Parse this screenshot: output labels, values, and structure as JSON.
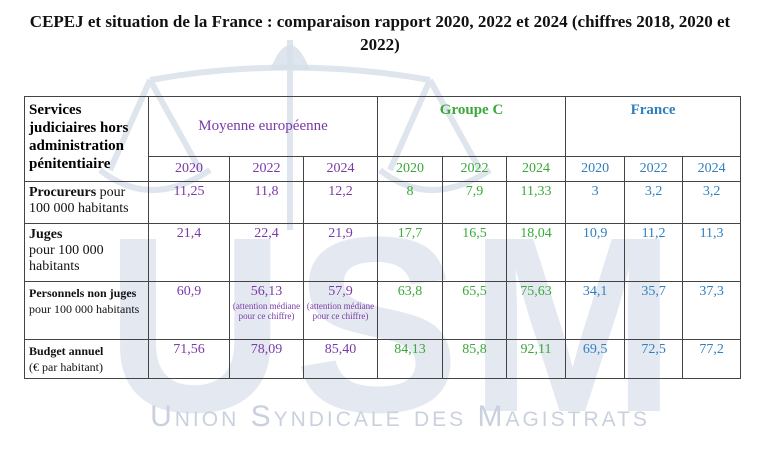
{
  "title": "CEPEJ et situation de la France : comparaison rapport 2020, 2022 et 2024 (chiffres 2018, 2020 et 2022)",
  "watermark": {
    "logo": "USM",
    "caption": "Union Syndicale des Magistrats"
  },
  "colors": {
    "eu": "#7a3aa6",
    "groupe_c": "#3aa83a",
    "france": "#2f7fbf"
  },
  "table": {
    "header": {
      "label": "Services judiciaires hors administration pénitentiaire",
      "groups": [
        "Moyenne européenne",
        "Groupe C",
        "France"
      ],
      "years": [
        "2020",
        "2022",
        "2024"
      ]
    },
    "rows": [
      {
        "label_bold": "Procureurs",
        "label_rest": " pour 100 000 habitants",
        "eu": [
          "11,25",
          "11,8",
          "12,2"
        ],
        "eu_notes": [
          "",
          "",
          ""
        ],
        "gc": [
          "8",
          "7,9",
          "11,33"
        ],
        "fr": [
          "3",
          "3,2",
          "3,2"
        ]
      },
      {
        "label_bold": "Juges",
        "label_rest": "pour 100 000 habitants",
        "eu": [
          "21,4",
          "22,4",
          "21,9"
        ],
        "eu_notes": [
          "",
          "",
          ""
        ],
        "gc": [
          "17,7",
          "16,5",
          "18,04"
        ],
        "fr": [
          "10,9",
          "11,2",
          "11,3"
        ]
      },
      {
        "label_bold": "Personnels non juges",
        "label_rest": " pour 100 000 habitants",
        "eu": [
          "60,9",
          "56,13",
          "57,9"
        ],
        "eu_notes": [
          "",
          "(attention médiane pour ce chiffre)",
          "(attention médiane pour ce chiffre)"
        ],
        "gc": [
          "63,8",
          "65,5",
          "75,63"
        ],
        "fr": [
          "34,1",
          "35,7",
          "37,3"
        ]
      },
      {
        "label_bold": "Budget annuel",
        "label_rest": "(€ par habitant)",
        "eu": [
          "71,56",
          "78,09",
          "85,40"
        ],
        "eu_notes": [
          "",
          "",
          ""
        ],
        "gc": [
          "84,13",
          "85,8",
          "92,11"
        ],
        "fr": [
          "69,5",
          "72,5",
          "77,2"
        ]
      }
    ]
  }
}
